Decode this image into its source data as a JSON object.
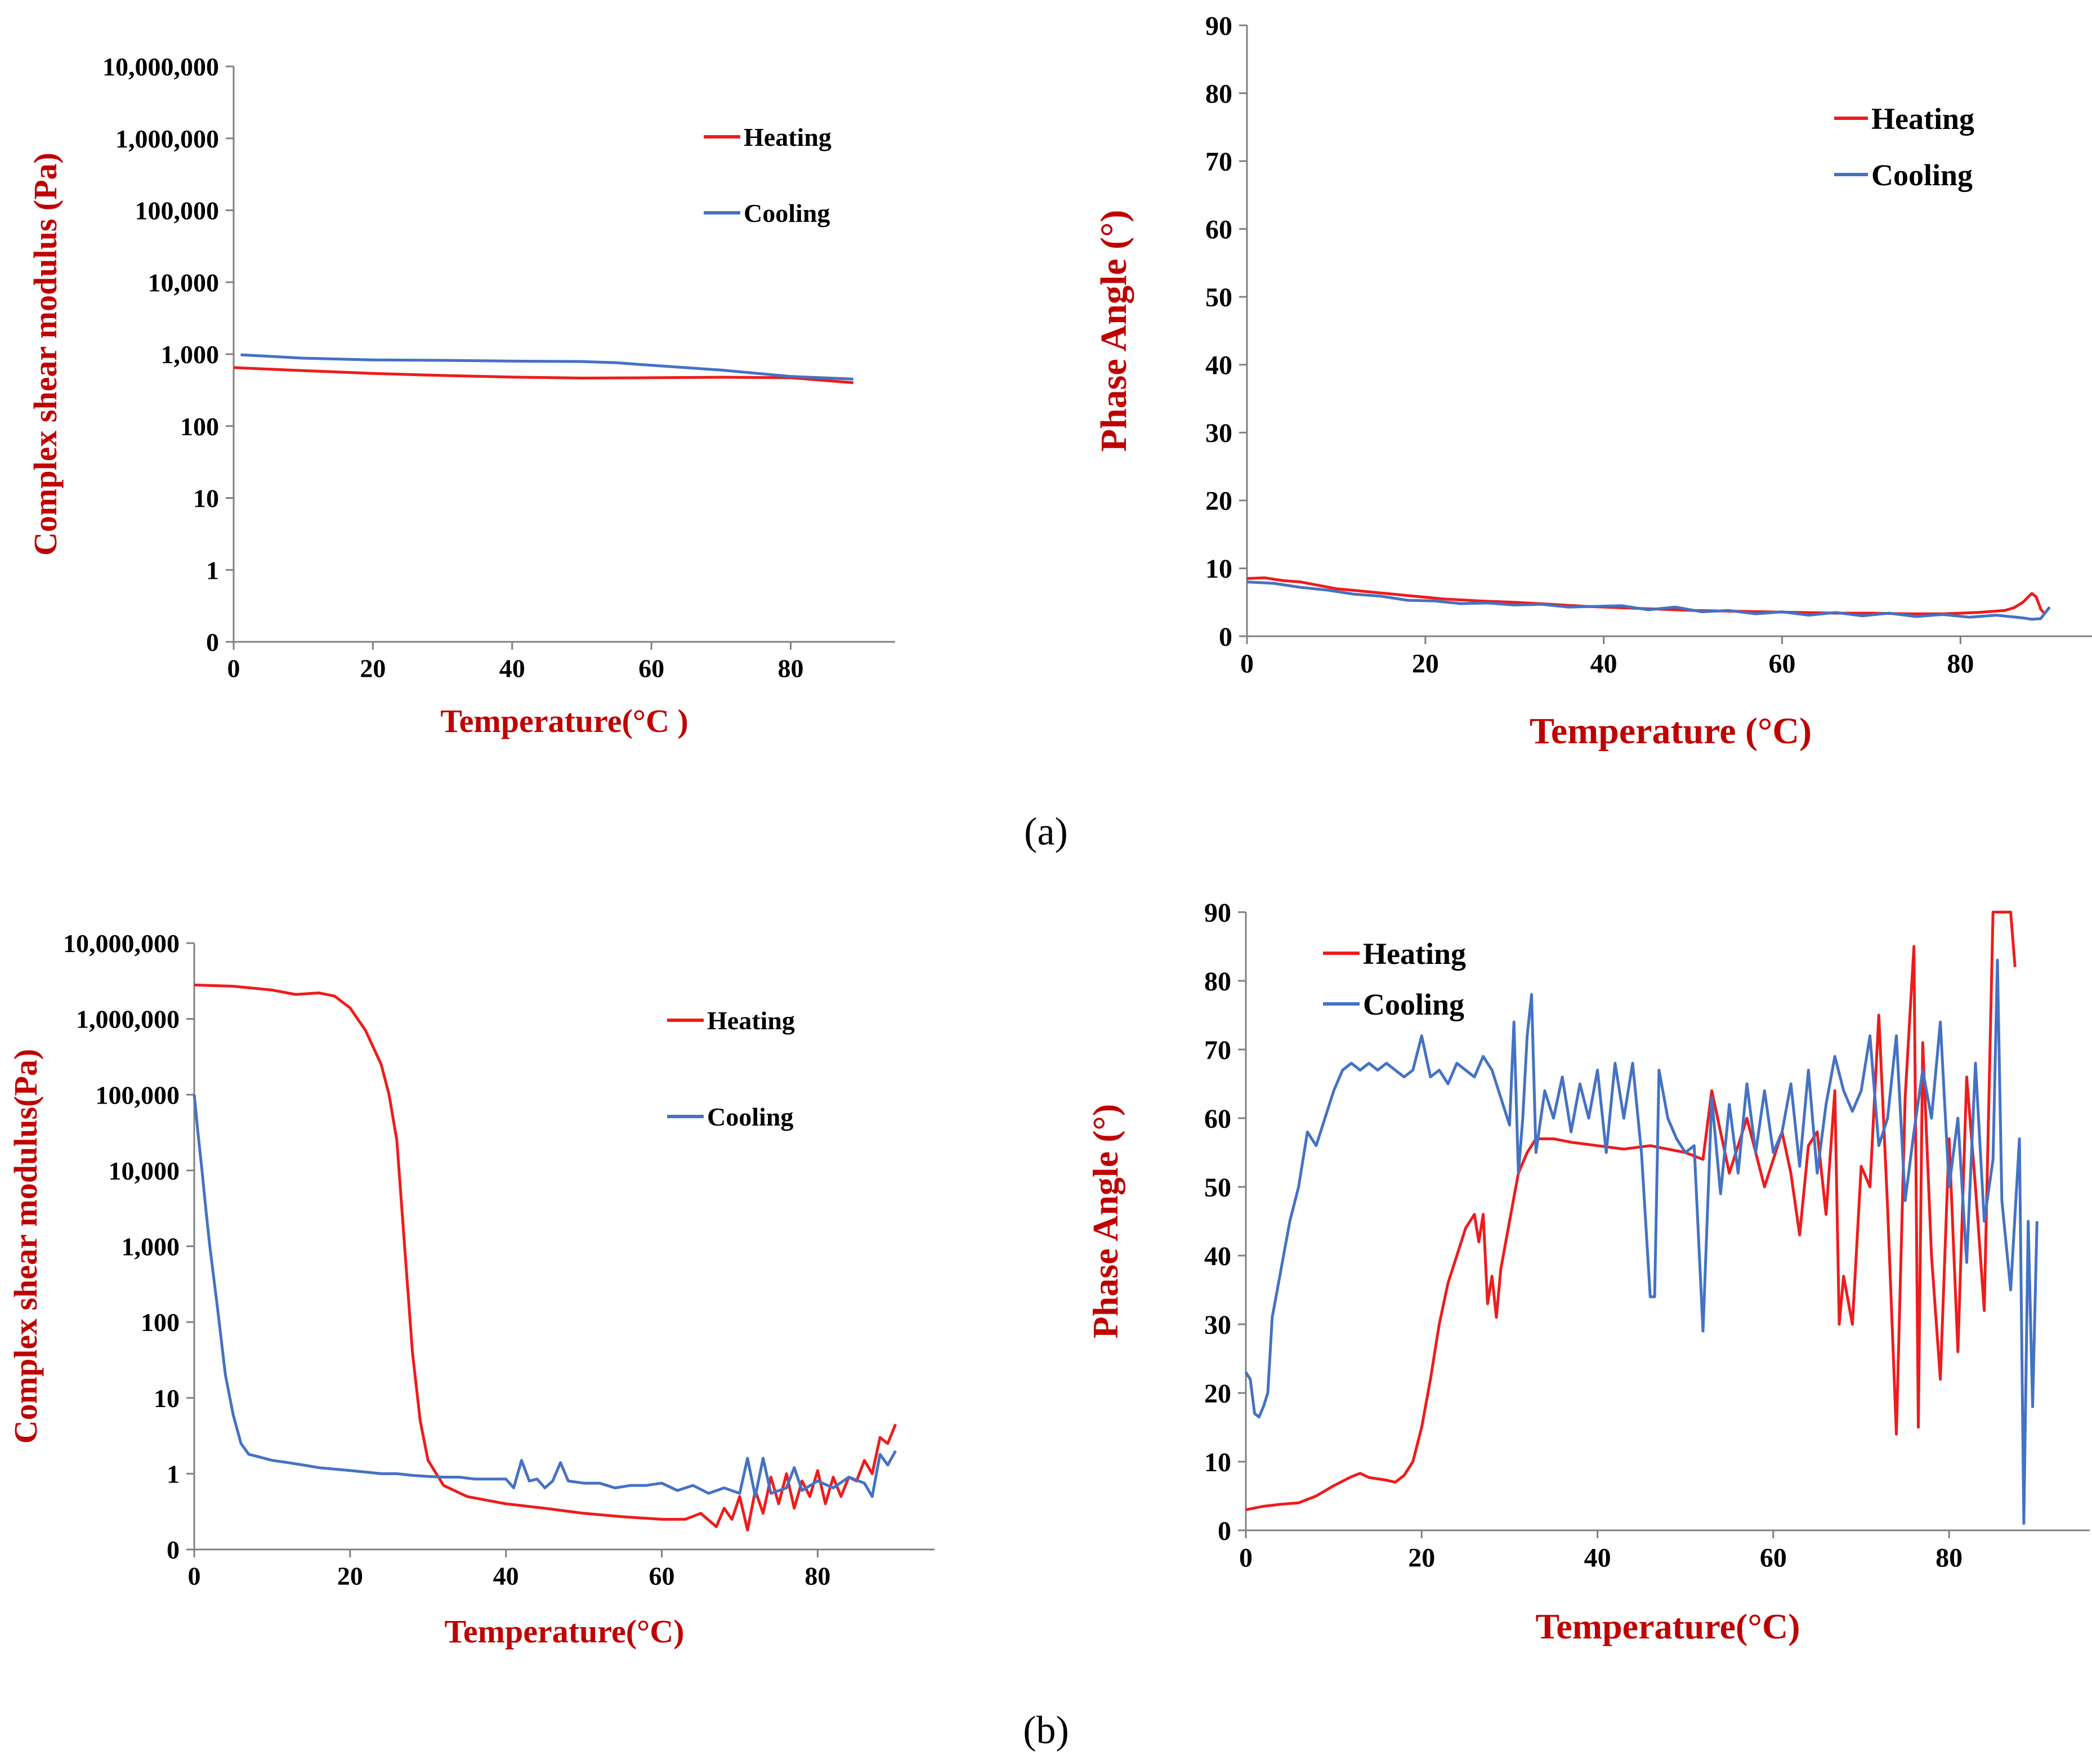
{
  "colors": {
    "heating": "#ee1c1c",
    "cooling": "#4472c4",
    "axis_label": "#c00000",
    "axis": "#808080"
  },
  "captions": {
    "a": "(a)",
    "b": "(b)"
  },
  "chart_data": [
    {
      "id": "a-modulus",
      "type": "line",
      "ylog": true,
      "title": "",
      "xlabel": "Temperature(°C )",
      "ylabel": "Complex shear modulus (Pa)",
      "xlim": [
        0,
        95
      ],
      "ylim_log": [
        -1,
        7
      ],
      "xticks": [
        0,
        20,
        40,
        60,
        80
      ],
      "xtick_labels": [
        "0",
        "20",
        "40",
        "60",
        "80"
      ],
      "yticks": [
        0.1,
        1,
        10,
        100,
        1000,
        10000,
        100000,
        1000000,
        10000000
      ],
      "ytick_labels": [
        "0",
        "1",
        "10",
        "100",
        "1,000",
        "10,000",
        "100,000",
        "1,000,000",
        "10,000,000"
      ],
      "legend": "top-right",
      "series": [
        {
          "name": "Heating",
          "color_key": "heating",
          "x": [
            0,
            10,
            20,
            30,
            40,
            50,
            60,
            70,
            80,
            89
          ],
          "y": [
            650,
            590,
            540,
            505,
            480,
            465,
            470,
            478,
            470,
            400
          ]
        },
        {
          "name": "Cooling",
          "color_key": "cooling",
          "x": [
            1,
            10,
            20,
            30,
            40,
            50,
            55,
            60,
            70,
            80,
            89
          ],
          "y": [
            980,
            880,
            830,
            820,
            800,
            790,
            760,
            700,
            600,
            490,
            450
          ]
        }
      ]
    },
    {
      "id": "a-phase",
      "type": "line",
      "ylog": false,
      "title": "",
      "xlabel": "Temperature (°C)",
      "ylabel": "Phase Angle (°)",
      "xlim": [
        0,
        95
      ],
      "ylim": [
        0,
        90
      ],
      "xticks": [
        0,
        20,
        40,
        60,
        80
      ],
      "xtick_labels": [
        "0",
        "20",
        "40",
        "60",
        "80"
      ],
      "yticks": [
        0,
        10,
        20,
        30,
        40,
        50,
        60,
        70,
        80,
        90
      ],
      "ytick_labels": [
        "0",
        "10",
        "20",
        "30",
        "40",
        "50",
        "60",
        "70",
        "80",
        "90"
      ],
      "legend": "top-right",
      "series": [
        {
          "name": "Heating",
          "color_key": "heating",
          "x": [
            0,
            2,
            4,
            6,
            8,
            10,
            14,
            18,
            22,
            26,
            30,
            34,
            38,
            42,
            46,
            50,
            54,
            58,
            62,
            66,
            70,
            74,
            78,
            82,
            85,
            86,
            87,
            88,
            88.5,
            89,
            89.5
          ],
          "y": [
            8.5,
            8.6,
            8.2,
            8.0,
            7.5,
            7.0,
            6.5,
            6.0,
            5.5,
            5.2,
            5.0,
            4.7,
            4.4,
            4.2,
            4.0,
            3.8,
            3.7,
            3.6,
            3.5,
            3.4,
            3.4,
            3.3,
            3.3,
            3.5,
            3.8,
            4.2,
            5.0,
            6.3,
            5.8,
            4.0,
            3.2
          ]
        },
        {
          "name": "Cooling",
          "color_key": "cooling",
          "x": [
            0,
            3,
            6,
            9,
            12,
            15,
            18,
            21,
            24,
            27,
            30,
            33,
            36,
            39,
            42,
            45,
            48,
            51,
            54,
            57,
            60,
            63,
            66,
            69,
            72,
            75,
            78,
            81,
            84,
            87,
            88,
            89,
            90
          ],
          "y": [
            8.0,
            7.8,
            7.2,
            6.8,
            6.2,
            5.9,
            5.3,
            5.2,
            4.8,
            4.9,
            4.6,
            4.7,
            4.3,
            4.4,
            4.5,
            3.9,
            4.3,
            3.6,
            3.8,
            3.3,
            3.6,
            3.1,
            3.5,
            3.0,
            3.4,
            2.9,
            3.2,
            2.8,
            3.1,
            2.7,
            2.5,
            2.6,
            4.3
          ]
        }
      ]
    },
    {
      "id": "b-modulus",
      "type": "line",
      "ylog": true,
      "title": "",
      "xlabel": "Temperature(°C)",
      "ylabel": "Complex shear modulus(Pa)",
      "xlim": [
        0,
        95
      ],
      "ylim_log": [
        -1,
        7
      ],
      "xticks": [
        0,
        20,
        40,
        60,
        80
      ],
      "xtick_labels": [
        "0",
        "20",
        "40",
        "60",
        "80"
      ],
      "yticks": [
        0.1,
        1,
        10,
        100,
        1000,
        10000,
        100000,
        1000000,
        10000000
      ],
      "ytick_labels": [
        "0",
        "1",
        "10",
        "100",
        "1,000",
        "10,000",
        "100,000",
        "1,000,000",
        "10,000,000"
      ],
      "legend": "top-right",
      "series": [
        {
          "name": "Heating",
          "color_key": "heating",
          "x": [
            0,
            5,
            10,
            13,
            16,
            18,
            20,
            22,
            24,
            25,
            26,
            27,
            28,
            29,
            30,
            32,
            35,
            40,
            45,
            50,
            55,
            60,
            63,
            65,
            67,
            68,
            69,
            70,
            71,
            72,
            73,
            74,
            75,
            76,
            77,
            78,
            79,
            80,
            81,
            82,
            83,
            84,
            85,
            86,
            87,
            88,
            89,
            90
          ],
          "y": [
            2800000,
            2700000,
            2400000,
            2100000,
            2200000,
            2000000,
            1400000,
            700000,
            250000,
            100000,
            25000,
            1000,
            40,
            5,
            1.5,
            0.7,
            0.5,
            0.4,
            0.35,
            0.3,
            0.27,
            0.25,
            0.25,
            0.3,
            0.2,
            0.35,
            0.25,
            0.5,
            0.18,
            0.6,
            0.3,
            0.9,
            0.4,
            1.0,
            0.35,
            0.8,
            0.5,
            1.1,
            0.4,
            0.9,
            0.5,
            0.9,
            0.8,
            1.5,
            1.0,
            3.0,
            2.5,
            4.5
          ]
        },
        {
          "name": "Cooling",
          "color_key": "cooling",
          "x": [
            0,
            0.5,
            1,
            1.5,
            2,
            3,
            4,
            5,
            6,
            7,
            8,
            10,
            12,
            14,
            16,
            18,
            20,
            22,
            24,
            26,
            28,
            30,
            32,
            34,
            36,
            38,
            40,
            41,
            42,
            43,
            44,
            45,
            46,
            47,
            48,
            50,
            52,
            54,
            56,
            58,
            60,
            62,
            64,
            66,
            68,
            70,
            71,
            72,
            73,
            74,
            76,
            77,
            78,
            80,
            82,
            84,
            86,
            87,
            88,
            89,
            90
          ],
          "y": [
            100000,
            30000,
            10000,
            3000,
            1000,
            150,
            20,
            6,
            2.5,
            1.8,
            1.7,
            1.5,
            1.4,
            1.3,
            1.2,
            1.15,
            1.1,
            1.05,
            1.0,
            1.0,
            0.95,
            0.92,
            0.9,
            0.9,
            0.85,
            0.85,
            0.85,
            0.65,
            1.5,
            0.8,
            0.85,
            0.65,
            0.8,
            1.4,
            0.8,
            0.75,
            0.75,
            0.65,
            0.7,
            0.7,
            0.75,
            0.6,
            0.7,
            0.55,
            0.65,
            0.55,
            1.6,
            0.5,
            1.6,
            0.55,
            0.65,
            1.2,
            0.6,
            0.8,
            0.65,
            0.9,
            0.75,
            0.5,
            1.8,
            1.3,
            2.0
          ]
        }
      ]
    },
    {
      "id": "b-phase",
      "type": "line",
      "ylog": false,
      "title": "",
      "xlabel": "Temperature(°C)",
      "ylabel": "Phase Angle (°)",
      "xlim": [
        0,
        96
      ],
      "ylim": [
        0,
        90
      ],
      "xticks": [
        0,
        20,
        40,
        60,
        80
      ],
      "xtick_labels": [
        "0",
        "20",
        "40",
        "60",
        "80"
      ],
      "yticks": [
        0,
        10,
        20,
        30,
        40,
        50,
        60,
        70,
        80,
        90
      ],
      "ytick_labels": [
        "0",
        "10",
        "20",
        "30",
        "40",
        "50",
        "60",
        "70",
        "80",
        "90"
      ],
      "legend": "top-left",
      "series": [
        {
          "name": "Heating",
          "color_key": "heating",
          "x": [
            0,
            2,
            4,
            6,
            8,
            10,
            12,
            13,
            14,
            16,
            17,
            18,
            19,
            20,
            21,
            22,
            23,
            24,
            25,
            26,
            26.5,
            27,
            27.5,
            28,
            28.5,
            29,
            30,
            31,
            32,
            33,
            35,
            37,
            40,
            43,
            46,
            50,
            52,
            53,
            55,
            57,
            59,
            61,
            62,
            63,
            64,
            65,
            66,
            67,
            67.5,
            68,
            69,
            70,
            71,
            72,
            73,
            74,
            75,
            76,
            76.5,
            77,
            78,
            79,
            80,
            81,
            82,
            83,
            84,
            85,
            86,
            87,
            87.5
          ],
          "y": [
            3,
            3.5,
            3.8,
            4,
            5,
            6.5,
            7.8,
            8.3,
            7.7,
            7.3,
            7.0,
            8.0,
            10,
            15,
            22,
            30,
            36,
            40,
            44,
            46,
            42,
            46,
            33,
            37,
            31,
            38,
            45,
            52,
            55,
            57,
            57,
            56.5,
            56,
            55.5,
            56,
            55,
            54,
            64,
            52,
            60,
            50,
            58,
            52,
            43,
            56,
            58,
            46,
            64,
            30,
            37,
            30,
            53,
            50,
            75,
            47,
            14,
            63,
            85,
            15,
            71,
            40,
            22,
            57,
            26,
            66,
            50,
            32,
            90,
            90,
            90,
            82
          ]
        },
        {
          "name": "Cooling",
          "color_key": "cooling",
          "x": [
            0,
            0.5,
            1,
            1.5,
            2,
            2.5,
            3,
            4,
            5,
            6,
            7,
            8,
            9,
            10,
            11,
            12,
            13,
            14,
            15,
            16,
            17,
            18,
            19,
            20,
            21,
            22,
            23,
            24,
            25,
            26,
            27,
            28,
            29,
            30,
            30.5,
            31,
            31.5,
            32,
            32.5,
            33,
            34,
            35,
            36,
            37,
            38,
            39,
            40,
            41,
            42,
            43,
            44,
            45,
            46,
            46.5,
            47,
            48,
            49,
            50,
            51,
            52,
            53,
            54,
            55,
            56,
            57,
            58,
            59,
            60,
            61,
            62,
            63,
            64,
            65,
            66,
            67,
            68,
            69,
            70,
            71,
            72,
            73,
            74,
            75,
            76,
            77,
            78,
            79,
            80,
            81,
            82,
            83,
            84,
            85,
            85.5,
            86,
            87,
            88,
            88.5,
            89,
            89.5,
            90
          ],
          "y": [
            23,
            22,
            17,
            16.5,
            18,
            20,
            31,
            38,
            45,
            50,
            58,
            56,
            60,
            64,
            67,
            68,
            67,
            68,
            67,
            68,
            67,
            66,
            67,
            72,
            66,
            67,
            65,
            68,
            67,
            66,
            69,
            67,
            63,
            59,
            74,
            52,
            60,
            72,
            78,
            55,
            64,
            60,
            66,
            58,
            65,
            60,
            67,
            55,
            68,
            60,
            68,
            55,
            34,
            34,
            67,
            60,
            57,
            55,
            56,
            29,
            63,
            49,
            62,
            52,
            65,
            55,
            64,
            55,
            58,
            65,
            53,
            67,
            52,
            62,
            69,
            64,
            61,
            64,
            72,
            56,
            60,
            72,
            48,
            58,
            67,
            60,
            74,
            50,
            60,
            39,
            68,
            45,
            54,
            83,
            48,
            35,
            57,
            1,
            45,
            18,
            45
          ]
        }
      ]
    }
  ]
}
